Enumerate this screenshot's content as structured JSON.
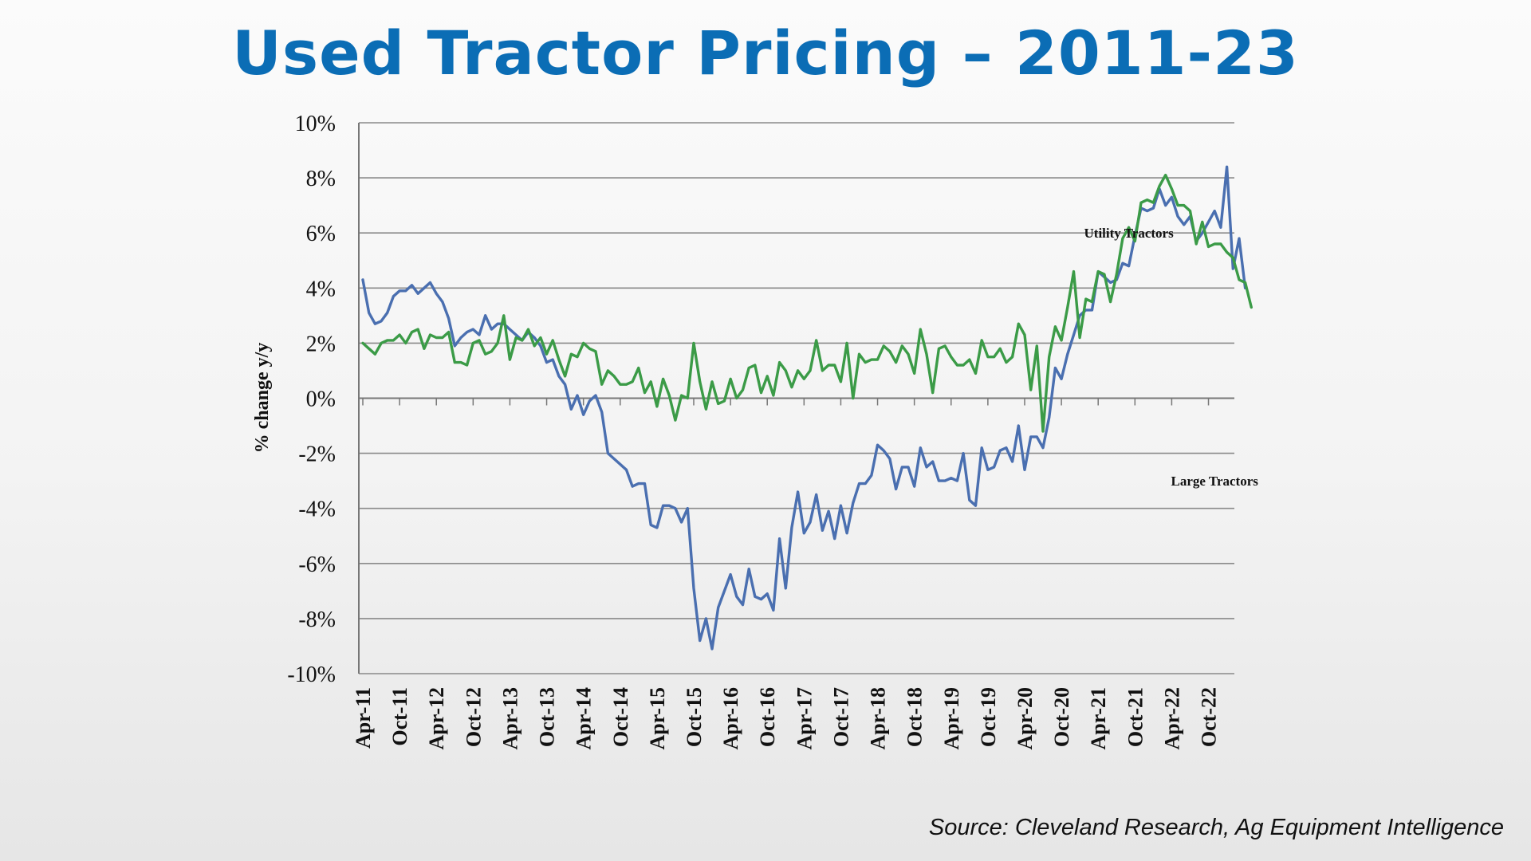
{
  "slide": {
    "title": "Used Tractor Pricing – 2011-23",
    "source": "Source: Cleveland Research, Ag Equipment Intelligence"
  },
  "chart_data": {
    "type": "line",
    "ylabel": "% change y/y",
    "ylim": [
      -10,
      10
    ],
    "ytick_labels": [
      "10%",
      "8%",
      "6%",
      "4%",
      "2%",
      "0%",
      "-2%",
      "-4%",
      "-6%",
      "-8%",
      "-10%"
    ],
    "x_tick_labels": [
      "Apr-11",
      "Oct-11",
      "Apr-12",
      "Oct-12",
      "Apr-13",
      "Oct-13",
      "Apr-14",
      "Oct-14",
      "Apr-15",
      "Oct-15",
      "Apr-16",
      "Oct-16",
      "Apr-17",
      "Oct-17",
      "Apr-18",
      "Oct-18",
      "Apr-19",
      "Oct-19",
      "Apr-20",
      "Oct-20",
      "Apr-21",
      "Oct-21",
      "Apr-22",
      "Oct-22"
    ],
    "x_start": "Apr-11",
    "x_interval": "monthly",
    "grid": true,
    "annotations": [
      {
        "text": "Utility Tractors",
        "x": "Sep-21",
        "y": 6.0
      },
      {
        "text": "Large Tractors",
        "x": "Nov-22",
        "y": -3.0
      }
    ],
    "series": [
      {
        "name": "Large Tractors",
        "color": "#4a6fb0",
        "values": [
          4.3,
          3.1,
          2.7,
          2.8,
          3.1,
          3.7,
          3.9,
          3.9,
          4.1,
          3.8,
          4.0,
          4.2,
          3.8,
          3.5,
          2.9,
          1.9,
          2.2,
          2.4,
          2.5,
          2.3,
          3.0,
          2.5,
          2.7,
          2.7,
          2.5,
          2.3,
          2.1,
          2.4,
          2.2,
          1.9,
          1.3,
          1.4,
          0.8,
          0.5,
          -0.4,
          0.1,
          -0.6,
          -0.1,
          0.1,
          -0.5,
          -2.0,
          -2.2,
          -2.4,
          -2.6,
          -3.2,
          -3.1,
          -3.1,
          -4.6,
          -4.7,
          -3.9,
          -3.9,
          -4.0,
          -4.5,
          -4.0,
          -6.9,
          -8.8,
          -8.0,
          -9.1,
          -7.6,
          -7.0,
          -6.4,
          -7.2,
          -7.5,
          -6.2,
          -7.2,
          -7.3,
          -7.1,
          -7.7,
          -5.1,
          -6.9,
          -4.7,
          -3.4,
          -4.9,
          -4.5,
          -3.5,
          -4.8,
          -4.1,
          -5.1,
          -3.9,
          -4.9,
          -3.8,
          -3.1,
          -3.1,
          -2.8,
          -1.7,
          -1.9,
          -2.2,
          -3.3,
          -2.5,
          -2.5,
          -3.2,
          -1.8,
          -2.5,
          -2.3,
          -3.0,
          -3.0,
          -2.9,
          -3.0,
          -2.0,
          -3.7,
          -3.9,
          -1.8,
          -2.6,
          -2.5,
          -1.9,
          -1.8,
          -2.3,
          -1.0,
          -2.6,
          -1.4,
          -1.4,
          -1.8,
          -0.7,
          1.1,
          0.7,
          1.6,
          2.3,
          3.0,
          3.2,
          3.2,
          4.6,
          4.4,
          4.2,
          4.3,
          4.9,
          4.8,
          5.9,
          6.9,
          6.8,
          6.9,
          7.6,
          7.0,
          7.3,
          6.6,
          6.3,
          6.6,
          5.7,
          6.0,
          6.4,
          6.8,
          6.2,
          8.4,
          4.7,
          5.8,
          4.0
        ]
      },
      {
        "name": "Utility Tractors",
        "color": "#3b9b47",
        "values": [
          2.0,
          1.8,
          1.6,
          2.0,
          2.1,
          2.1,
          2.3,
          2.0,
          2.4,
          2.5,
          1.8,
          2.3,
          2.2,
          2.2,
          2.4,
          1.3,
          1.3,
          1.2,
          2.0,
          2.1,
          1.6,
          1.7,
          2.0,
          3.0,
          1.4,
          2.2,
          2.1,
          2.5,
          1.9,
          2.2,
          1.6,
          2.1,
          1.4,
          0.8,
          1.6,
          1.5,
          2.0,
          1.8,
          1.7,
          0.5,
          1.0,
          0.8,
          0.5,
          0.5,
          0.6,
          1.1,
          0.2,
          0.6,
          -0.3,
          0.7,
          0.1,
          -0.8,
          0.1,
          0.0,
          2.0,
          0.6,
          -0.4,
          0.6,
          -0.2,
          -0.1,
          0.7,
          0.0,
          0.3,
          1.1,
          1.2,
          0.2,
          0.8,
          0.1,
          1.3,
          1.0,
          0.4,
          1.0,
          0.7,
          1.0,
          2.1,
          1.0,
          1.2,
          1.2,
          0.6,
          2.0,
          0.0,
          1.6,
          1.3,
          1.4,
          1.4,
          1.9,
          1.7,
          1.3,
          1.9,
          1.6,
          0.9,
          2.5,
          1.6,
          0.2,
          1.8,
          1.9,
          1.5,
          1.2,
          1.2,
          1.4,
          0.9,
          2.1,
          1.5,
          1.5,
          1.8,
          1.3,
          1.5,
          2.7,
          2.3,
          0.3,
          1.9,
          -1.2,
          1.5,
          2.6,
          2.1,
          3.3,
          4.6,
          2.2,
          3.6,
          3.5,
          4.6,
          4.5,
          3.5,
          4.5,
          5.8,
          6.2,
          5.7,
          7.1,
          7.2,
          7.1,
          7.7,
          8.1,
          7.6,
          7.0,
          7.0,
          6.8,
          5.6,
          6.4,
          5.5,
          5.6,
          5.6,
          5.3,
          5.1,
          4.3,
          4.2,
          3.3
        ]
      }
    ]
  }
}
